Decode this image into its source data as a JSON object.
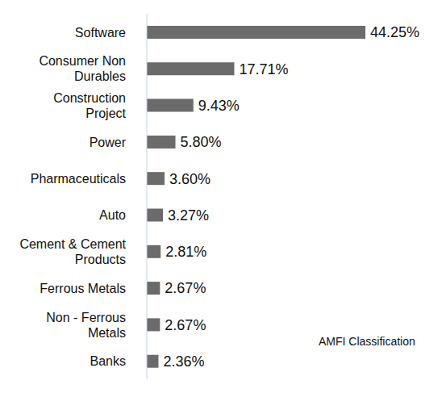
{
  "chart_data": {
    "type": "bar",
    "orientation": "horizontal",
    "categories": [
      "Software",
      "Consumer Non Durables",
      "Construction Project",
      "Power",
      "Pharmaceuticals",
      "Auto",
      "Cement & Cement Products",
      "Ferrous Metals",
      "Non - Ferrous Metals",
      "Banks"
    ],
    "values": [
      44.25,
      17.71,
      9.43,
      5.8,
      3.6,
      3.27,
      2.81,
      2.67,
      2.67,
      2.36
    ],
    "value_labels": [
      "44.25%",
      "17.71%",
      "9.43%",
      "5.80%",
      "3.60%",
      "3.27%",
      "2.81%",
      "2.67%",
      "2.67%",
      "2.36%"
    ],
    "color": "#6b6b6b",
    "data_labels": true,
    "tick_labels": "y",
    "annotation": "AMFI Classification"
  }
}
